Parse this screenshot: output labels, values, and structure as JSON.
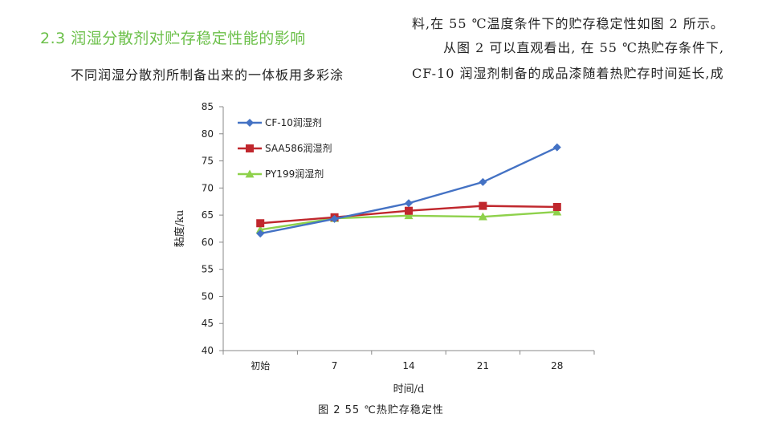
{
  "section": {
    "heading": "2.3 润湿分散剂对贮存稳定性能的影响",
    "left_paragraph": "不同润湿分散剂所制备出来的一体板用多彩涂",
    "right_line1": "料,在 55 ℃温度条件下的贮存稳定性如图 2 所示。",
    "right_line2": "从图 2 可以直观看出, 在 55 ℃热贮存条件下,",
    "right_line3": "CF-10 润湿剂制备的成品漆随着热贮存时间延长,成"
  },
  "figure": {
    "caption": "图 2  55 ℃热贮存稳定性"
  },
  "chart_data": {
    "type": "line",
    "xlabel": "时间/d",
    "ylabel": "黏度/ku",
    "categories": [
      "初始",
      "7",
      "14",
      "21",
      "28"
    ],
    "ylim": [
      40,
      85
    ],
    "yticks": [
      40,
      45,
      50,
      55,
      60,
      65,
      70,
      75,
      80,
      85
    ],
    "grid": false,
    "legend_position": "top-left",
    "series": [
      {
        "name": "CF-10润湿剂",
        "values": [
          61.6,
          64.3,
          67.2,
          71.1,
          77.5
        ],
        "color": "#4472c4",
        "marker": "diamond"
      },
      {
        "name": "SAA586润湿剂",
        "values": [
          63.5,
          64.6,
          65.8,
          66.7,
          66.5
        ],
        "color": "#c0272d",
        "marker": "square"
      },
      {
        "name": "PY199润湿剂",
        "values": [
          62.3,
          64.4,
          64.9,
          64.7,
          65.6
        ],
        "color": "#8ed14b",
        "marker": "triangle"
      }
    ]
  }
}
